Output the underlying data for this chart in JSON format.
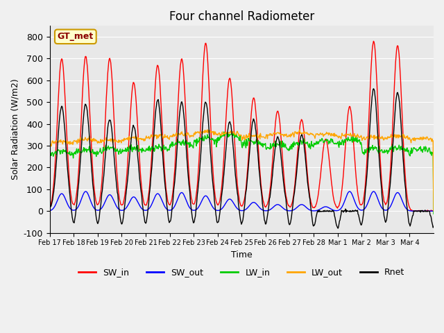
{
  "title": "Four channel Radiometer",
  "xlabel": "Time",
  "ylabel": "Solar Radiation (W/m2)",
  "ylim": [
    -100,
    850
  ],
  "xtick_labels": [
    "Feb 17",
    "Feb 18",
    "Feb 19",
    "Feb 20",
    "Feb 21",
    "Feb 22",
    "Feb 23",
    "Feb 24",
    "Feb 25",
    "Feb 26",
    "Feb 27",
    "Feb 28",
    "Mar 1",
    "Mar 2",
    "Mar 3",
    "Mar 4"
  ],
  "ytick_values": [
    -100,
    0,
    100,
    200,
    300,
    400,
    500,
    600,
    700,
    800
  ],
  "colors": {
    "SW_in": "#ff0000",
    "SW_out": "#0000ff",
    "LW_in": "#00cc00",
    "LW_out": "#ffa500",
    "Rnet": "#000000"
  },
  "legend_label": "GT_met",
  "legend_bg": "#ffffcc",
  "legend_border": "#cc9900",
  "plot_bg": "#e8e8e8",
  "line_width": 1.0,
  "n_days": 16,
  "n_points_per_day": 48,
  "SW_in_peaks": [
    700,
    710,
    700,
    590,
    670,
    700,
    770,
    610,
    520,
    460,
    420,
    330,
    480,
    780,
    760,
    0
  ],
  "SW_out_peaks": [
    80,
    90,
    75,
    65,
    80,
    85,
    70,
    55,
    40,
    30,
    30,
    20,
    90,
    90,
    85,
    0
  ],
  "LW_in_base": [
    255,
    260,
    265,
    270,
    275,
    295,
    315,
    330,
    300,
    285,
    295,
    305,
    310,
    265,
    270,
    265
  ],
  "LW_out_base": [
    310,
    320,
    315,
    325,
    335,
    345,
    355,
    350,
    335,
    345,
    350,
    345,
    340,
    330,
    335,
    325
  ],
  "Rnet_peaks": [
    480,
    490,
    420,
    390,
    510,
    500,
    500,
    410,
    420,
    340,
    350,
    0,
    0,
    560,
    545,
    0
  ]
}
